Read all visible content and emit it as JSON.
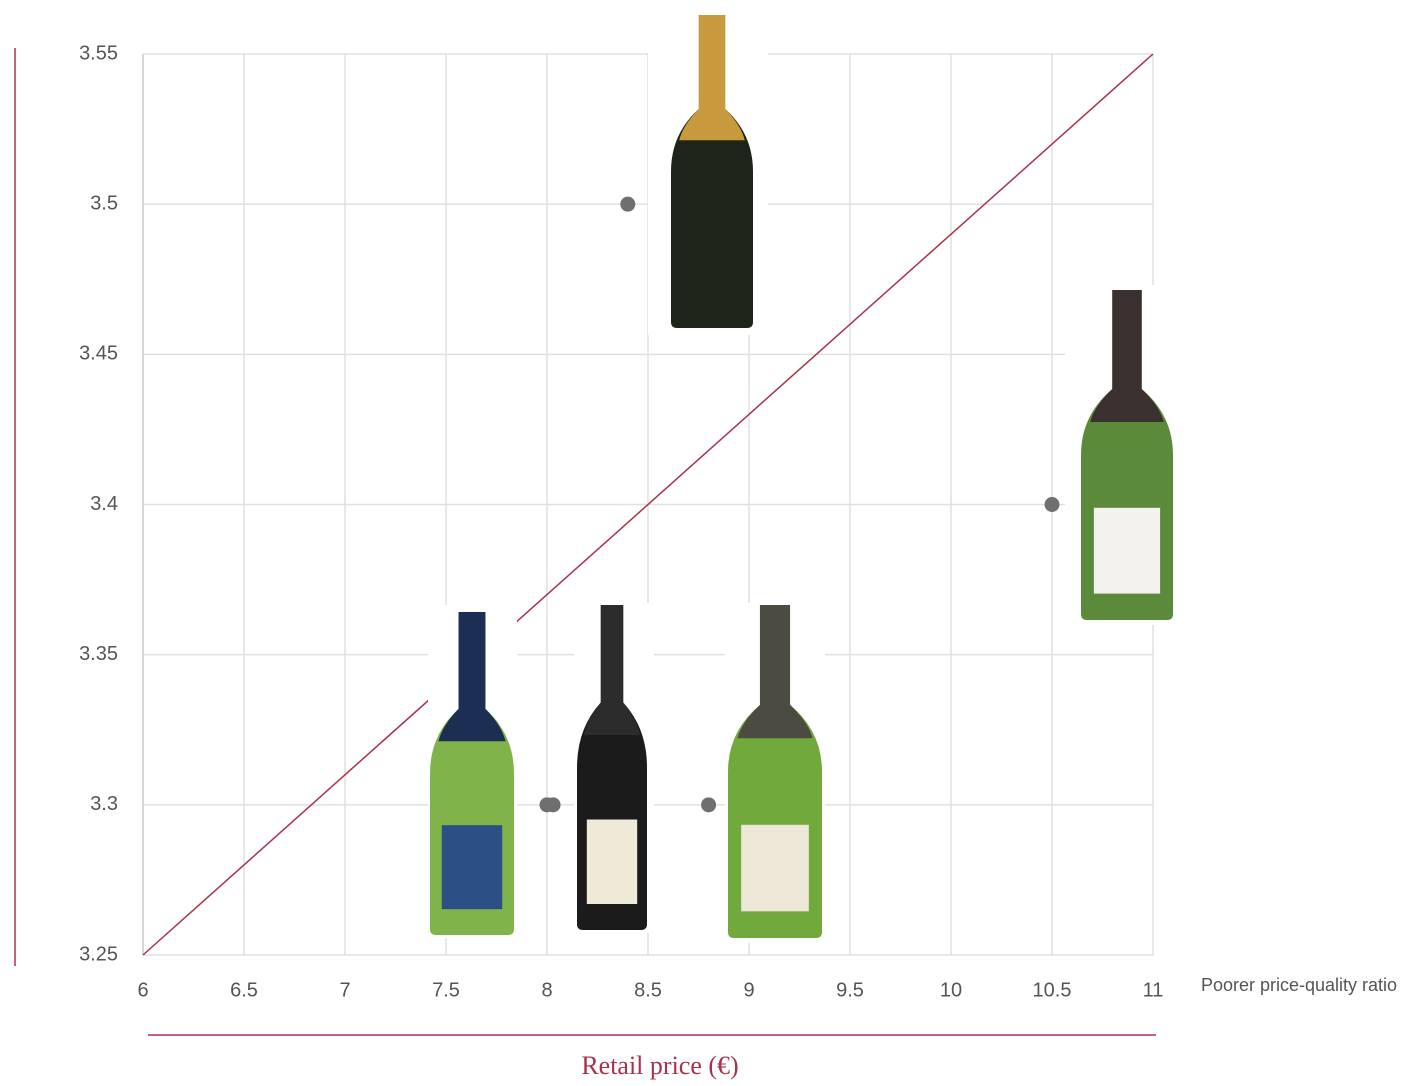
{
  "chart_data": {
    "type": "scatter",
    "x": [
      8.4,
      10.5,
      8.0,
      8.03,
      8.8
    ],
    "values": [
      3.5,
      3.4,
      3.3,
      3.3,
      3.3
    ],
    "color": "#6f6f6f",
    "reference_line": {
      "x": [
        6,
        11
      ],
      "values": [
        3.25,
        3.55
      ],
      "color": "#a8324a"
    },
    "xlim": [
      6,
      11
    ],
    "ylim": [
      3.25,
      3.55
    ],
    "xticks": [
      6,
      6.5,
      7,
      7.5,
      8,
      8.5,
      9,
      9.5,
      10,
      10.5,
      11
    ],
    "yticks": [
      3.25,
      3.3,
      3.35,
      3.4,
      3.45,
      3.5,
      3.55
    ],
    "grid": true,
    "x_label": "Retail price (€)",
    "x_annotation": "Poorer price-quality ratio"
  }
}
